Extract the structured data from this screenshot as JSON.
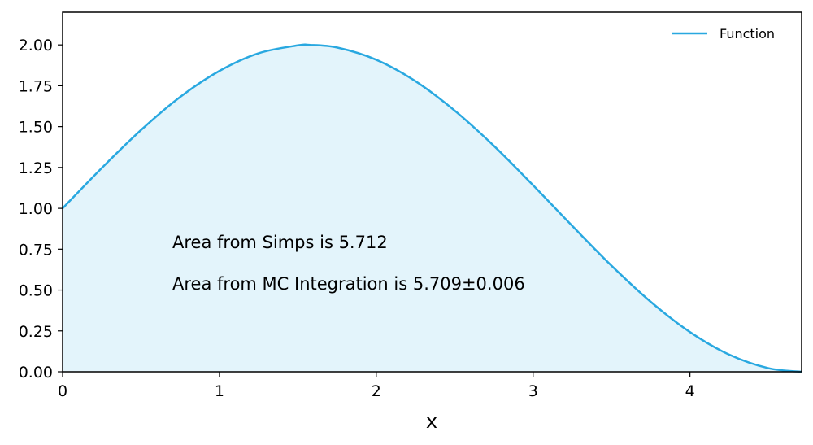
{
  "chart_data": {
    "type": "area",
    "title": "",
    "xlabel": "x",
    "ylabel": "",
    "xlim": [
      0,
      4.712
    ],
    "ylim": [
      0,
      2.2
    ],
    "x_ticks": [
      0,
      1,
      2,
      3,
      4
    ],
    "x_tick_labels": [
      "0",
      "1",
      "2",
      "3",
      "4"
    ],
    "y_ticks": [
      0,
      0.25,
      0.5,
      0.75,
      1.0,
      1.25,
      1.5,
      1.75,
      2.0
    ],
    "y_tick_labels": [
      "0.00",
      "0.25",
      "0.50",
      "0.75",
      "1.00",
      "1.25",
      "1.50",
      "1.75",
      "2.00"
    ],
    "grid": false,
    "legend": {
      "position": "top-right",
      "entries": [
        "Function"
      ]
    },
    "series": [
      {
        "name": "Function",
        "color": "#29a8e0",
        "fill_color": "#e3f4fb",
        "x": [
          0,
          0.25,
          0.5,
          0.75,
          1.0,
          1.25,
          1.5,
          1.571,
          1.75,
          2.0,
          2.25,
          2.5,
          2.75,
          3.0,
          3.25,
          3.5,
          3.75,
          4.0,
          4.25,
          4.5,
          4.712
        ],
        "y": [
          1.0,
          1.247,
          1.479,
          1.682,
          1.841,
          1.949,
          1.997,
          2.0,
          1.984,
          1.909,
          1.778,
          1.598,
          1.382,
          1.141,
          0.892,
          0.649,
          0.428,
          0.243,
          0.105,
          0.022,
          0.0
        ]
      }
    ],
    "annotations": [
      "Area from Simps is 5.712",
      "Area from MC Integration is 5.709±0.006"
    ]
  }
}
